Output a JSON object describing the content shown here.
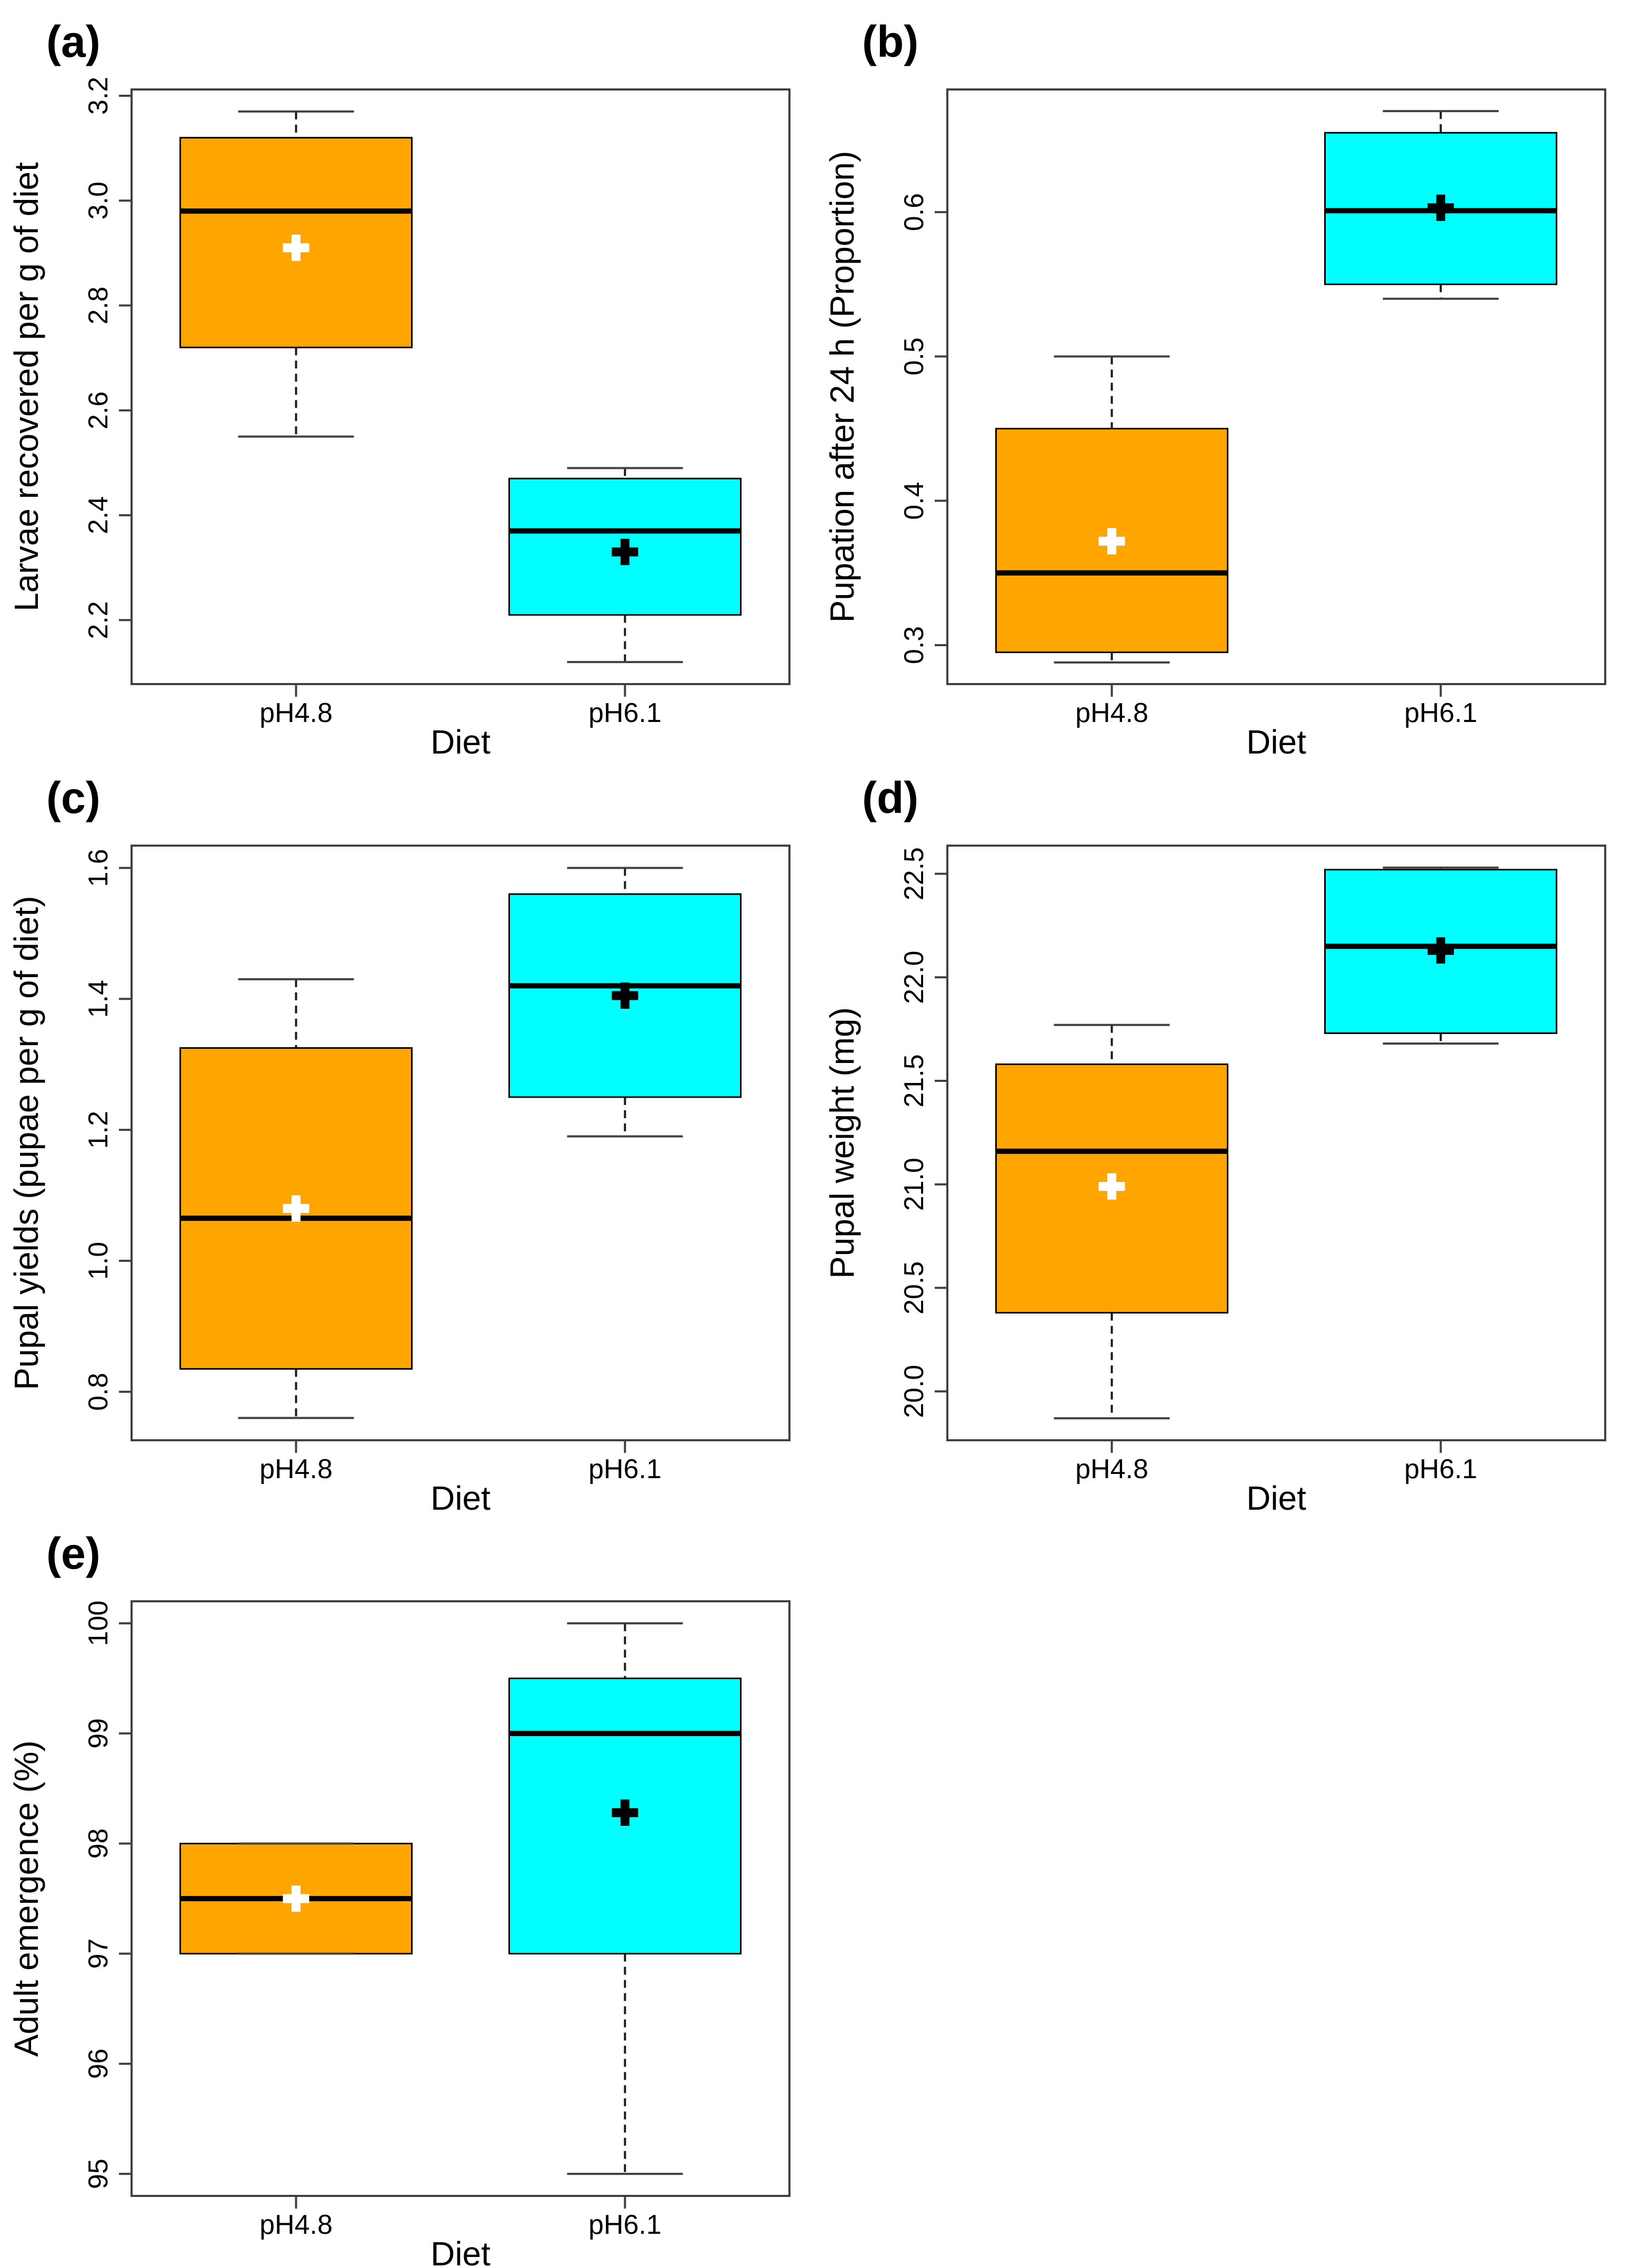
{
  "figure_title": "",
  "accent_colors": {
    "diet_ph48_fill": "#FFA500",
    "diet_ph61_fill": "#00FFFF",
    "median_line": "#000000",
    "frame_stroke": "#404040"
  },
  "chart_data": [
    {
      "type": "box",
      "panel_label": "(a)",
      "xlabel": "Diet",
      "ylabel": "Larvae recovered per g of diet",
      "categories": [
        "pH4.8",
        "pH6.1"
      ],
      "ylim": [
        2.078,
        3.212
      ],
      "grid": false,
      "legend": "none",
      "yticks": [
        {
          "label": "2.2",
          "value": 2.2
        },
        {
          "label": "2.4",
          "value": 2.4
        },
        {
          "label": "2.6",
          "value": 2.6
        },
        {
          "label": "2.8",
          "value": 2.8
        },
        {
          "label": "3.0",
          "value": 3.0
        },
        {
          "label": "3.2",
          "value": 3.2
        }
      ],
      "series": [
        {
          "name": "pH4.8",
          "box_color": "#FFA500",
          "mean_marker_color": "#FFFFFF",
          "whisker_low": 2.55,
          "q1": 2.72,
          "median": 2.98,
          "q3": 3.12,
          "whisker_high": 3.17,
          "mean": 2.91
        },
        {
          "name": "pH6.1",
          "box_color": "#00FFFF",
          "mean_marker_color": "#000000",
          "whisker_low": 2.12,
          "q1": 2.21,
          "median": 2.37,
          "q3": 2.47,
          "whisker_high": 2.49,
          "mean": 2.33
        }
      ]
    },
    {
      "type": "box",
      "panel_label": "(b)",
      "xlabel": "Diet",
      "ylabel": "Pupation after 24 h (Proportion)",
      "categories": [
        "pH4.8",
        "pH6.1"
      ],
      "ylim": [
        0.273,
        0.685
      ],
      "grid": false,
      "legend": "none",
      "yticks": [
        {
          "label": "0.3",
          "value": 0.3
        },
        {
          "label": "0.4",
          "value": 0.4
        },
        {
          "label": "0.5",
          "value": 0.5
        },
        {
          "label": "0.6",
          "value": 0.6
        }
      ],
      "series": [
        {
          "name": "pH4.8",
          "box_color": "#FFA500",
          "mean_marker_color": "#FFFFFF",
          "whisker_low": 0.288,
          "q1": 0.295,
          "median": 0.35,
          "q3": 0.45,
          "whisker_high": 0.5,
          "mean": 0.372
        },
        {
          "name": "pH6.1",
          "box_color": "#00FFFF",
          "mean_marker_color": "#000000",
          "whisker_low": 0.54,
          "q1": 0.55,
          "median": 0.601,
          "q3": 0.655,
          "whisker_high": 0.67,
          "mean": 0.603
        }
      ]
    },
    {
      "type": "box",
      "panel_label": "(c)",
      "xlabel": "Diet",
      "ylabel": "Pupal yields (pupae per g of diet)",
      "categories": [
        "pH4.8",
        "pH6.1"
      ],
      "ylim": [
        0.726,
        1.634
      ],
      "grid": false,
      "legend": "none",
      "yticks": [
        {
          "label": "0.8",
          "value": 0.8
        },
        {
          "label": "1.0",
          "value": 1.0
        },
        {
          "label": "1.2",
          "value": 1.2
        },
        {
          "label": "1.4",
          "value": 1.4
        },
        {
          "label": "1.6",
          "value": 1.6
        }
      ],
      "series": [
        {
          "name": "pH4.8",
          "box_color": "#FFA500",
          "mean_marker_color": "#FFFFFF",
          "whisker_low": 0.76,
          "q1": 0.835,
          "median": 1.065,
          "q3": 1.325,
          "whisker_high": 1.43,
          "mean": 1.08
        },
        {
          "name": "pH6.1",
          "box_color": "#00FFFF",
          "mean_marker_color": "#000000",
          "whisker_low": 1.19,
          "q1": 1.25,
          "median": 1.42,
          "q3": 1.56,
          "whisker_high": 1.6,
          "mean": 1.405
        }
      ]
    },
    {
      "type": "box",
      "panel_label": "(d)",
      "xlabel": "Diet",
      "ylabel": "Pupal weight (mg)",
      "categories": [
        "pH4.8",
        "pH6.1"
      ],
      "ylim": [
        19.764,
        22.636
      ],
      "grid": false,
      "legend": "none",
      "yticks": [
        {
          "label": "20.0",
          "value": 20.0
        },
        {
          "label": "20.5",
          "value": 20.5
        },
        {
          "label": "21.0",
          "value": 21.0
        },
        {
          "label": "21.5",
          "value": 21.5
        },
        {
          "label": "22.0",
          "value": 22.0
        },
        {
          "label": "22.5",
          "value": 22.5
        }
      ],
      "series": [
        {
          "name": "pH4.8",
          "box_color": "#FFA500",
          "mean_marker_color": "#FFFFFF",
          "whisker_low": 19.87,
          "q1": 20.38,
          "median": 21.16,
          "q3": 21.58,
          "whisker_high": 21.77,
          "mean": 20.99
        },
        {
          "name": "pH6.1",
          "box_color": "#00FFFF",
          "mean_marker_color": "#000000",
          "whisker_low": 21.68,
          "q1": 21.73,
          "median": 22.15,
          "q3": 22.52,
          "whisker_high": 22.53,
          "mean": 22.13
        }
      ]
    },
    {
      "type": "box",
      "panel_label": "(e)",
      "xlabel": "Diet",
      "ylabel": "Adult emergence (%)",
      "categories": [
        "pH4.8",
        "pH6.1"
      ],
      "ylim": [
        94.8,
        100.2
      ],
      "grid": false,
      "legend": "none",
      "yticks": [
        {
          "label": "95",
          "value": 95
        },
        {
          "label": "96",
          "value": 96
        },
        {
          "label": "97",
          "value": 97
        },
        {
          "label": "98",
          "value": 98
        },
        {
          "label": "99",
          "value": 99
        },
        {
          "label": "100",
          "value": 100
        }
      ],
      "series": [
        {
          "name": "pH4.8",
          "box_color": "#FFA500",
          "mean_marker_color": "#FFFFFF",
          "whisker_low": 97.0,
          "q1": 97.0,
          "median": 97.5,
          "q3": 98.0,
          "whisker_high": 98.0,
          "mean": 97.5
        },
        {
          "name": "pH6.1",
          "box_color": "#00FFFF",
          "mean_marker_color": "#000000",
          "whisker_low": 95.0,
          "q1": 97.0,
          "median": 99.0,
          "q3": 99.5,
          "whisker_high": 100.0,
          "mean": 98.28
        }
      ]
    }
  ]
}
